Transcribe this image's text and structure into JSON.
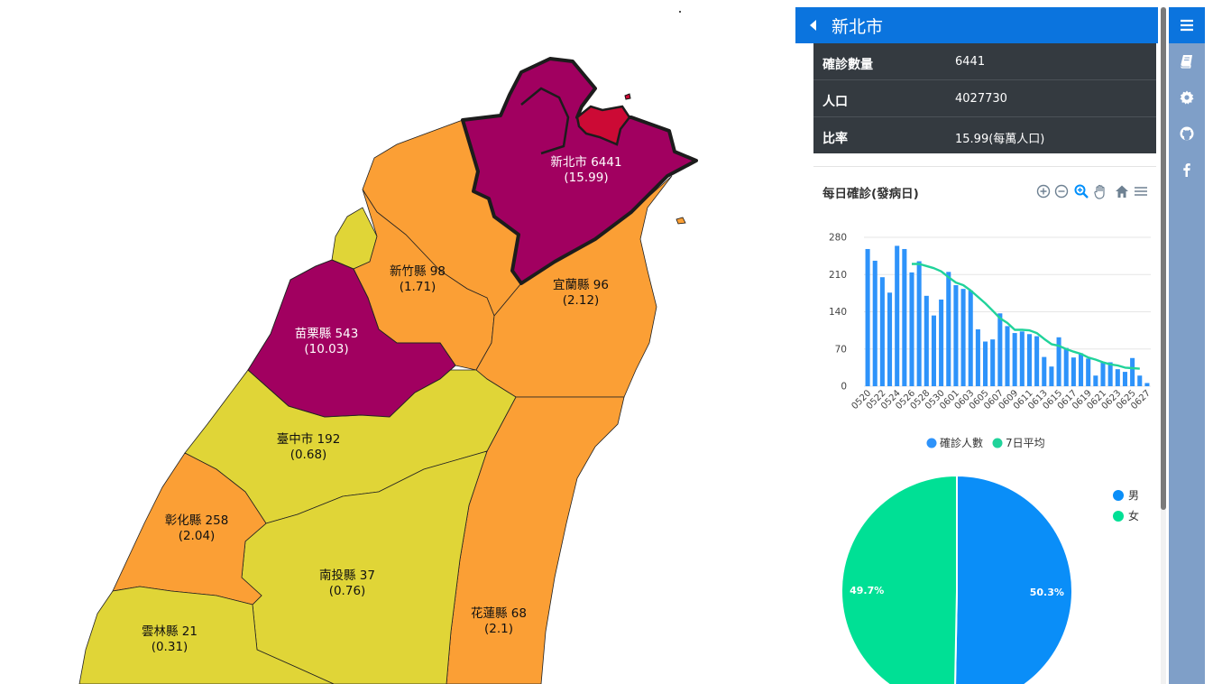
{
  "panel": {
    "title": "新北市",
    "info": [
      {
        "label": "確診數量",
        "value": "6441"
      },
      {
        "label": "人口",
        "value": "4027730"
      },
      {
        "label": "比率",
        "value": "15.99(每萬人口)"
      }
    ]
  },
  "map": {
    "regions": [
      {
        "name": "新北市",
        "line1": "新北市 6441",
        "line2": "(15.99)",
        "color": "#a10060"
      },
      {
        "name": "苗栗縣",
        "line1": "苗栗縣 543",
        "line2": "(10.03)",
        "color": "#a10060"
      },
      {
        "name": "臺北市",
        "line1": "",
        "line2": "",
        "color": "#cc0a35"
      },
      {
        "name": "新竹縣",
        "line1": "新竹縣 98",
        "line2": "(1.71)",
        "color": "#fb9f35"
      },
      {
        "name": "宜蘭縣",
        "line1": "宜蘭縣 96",
        "line2": "(2.12)",
        "color": "#fb9f35"
      },
      {
        "name": "臺中市",
        "line1": "臺中市 192",
        "line2": "(0.68)",
        "color": "#e0d537"
      },
      {
        "name": "彰化縣",
        "line1": "彰化縣 258",
        "line2": "(2.04)",
        "color": "#fb9f35"
      },
      {
        "name": "南投縣",
        "line1": "南投縣 37",
        "line2": "(0.76)",
        "color": "#e0d537"
      },
      {
        "name": "花蓮縣",
        "line1": "花蓮縣 68",
        "line2": "(2.1)",
        "color": "#fb9f35"
      },
      {
        "name": "雲林縣",
        "line1": "雲林縣 21",
        "line2": "(0.31)",
        "color": "#e0d537"
      }
    ]
  },
  "chart_data": [
    {
      "type": "bar",
      "title": "每日確診(發病日)",
      "xlabel": "",
      "ylabel": "",
      "ylim": [
        0,
        280
      ],
      "yticks": [
        0,
        70,
        140,
        210,
        280
      ],
      "categories": [
        "0520",
        "0521",
        "0522",
        "0523",
        "0524",
        "0525",
        "0526",
        "0527",
        "0528",
        "0529",
        "0530",
        "0531",
        "0601",
        "0602",
        "0603",
        "0604",
        "0605",
        "0606",
        "0607",
        "0608",
        "0609",
        "0610",
        "0611",
        "0612",
        "0613",
        "0614",
        "0615",
        "0616",
        "0617",
        "0618",
        "0619",
        "0620",
        "0621",
        "0622",
        "0623",
        "0624",
        "0625",
        "0626",
        "0627"
      ],
      "tick_labels": [
        "0520",
        "0522",
        "0524",
        "0526",
        "0528",
        "0530",
        "0601",
        "0603",
        "0605",
        "0607",
        "0609",
        "0611",
        "0613",
        "0615",
        "0617",
        "0619",
        "0621",
        "0623",
        "0625",
        "0627"
      ],
      "series": [
        {
          "name": "確診人數",
          "kind": "bar",
          "color": "#2e93fa",
          "values": [
            258,
            236,
            205,
            176,
            264,
            258,
            214,
            235,
            170,
            133,
            163,
            215,
            190,
            183,
            180,
            107,
            84,
            88,
            137,
            113,
            100,
            103,
            98,
            94,
            55,
            37,
            92,
            72,
            54,
            62,
            52,
            20,
            45,
            45,
            32,
            27,
            53,
            20,
            6
          ]
        },
        {
          "name": "7日平均",
          "kind": "line",
          "color": "#20d39a",
          "values": [
            null,
            null,
            null,
            null,
            null,
            null,
            230,
            230,
            226,
            222,
            216,
            205,
            195,
            190,
            180,
            168,
            156,
            142,
            128,
            119,
            106,
            106,
            105,
            100,
            89,
            79,
            76,
            70,
            65,
            61,
            54,
            50,
            45,
            41,
            39,
            35,
            34,
            33,
            null
          ]
        }
      ],
      "legend": "bottom",
      "grid": true
    },
    {
      "type": "pie",
      "labels": [
        "男",
        "女"
      ],
      "values": [
        50.3,
        49.7
      ],
      "value_labels": [
        "50.3%",
        "49.7%"
      ],
      "colors": [
        "#0a8ef8",
        "#00e095"
      ],
      "legend": "top-right"
    }
  ],
  "sidebar": {
    "items": [
      {
        "icon": "menu-icon",
        "active": true
      },
      {
        "icon": "book-icon",
        "active": false
      },
      {
        "icon": "gear-icon",
        "active": false
      },
      {
        "icon": "github-icon",
        "active": false
      },
      {
        "icon": "facebook-icon",
        "active": false
      }
    ]
  }
}
